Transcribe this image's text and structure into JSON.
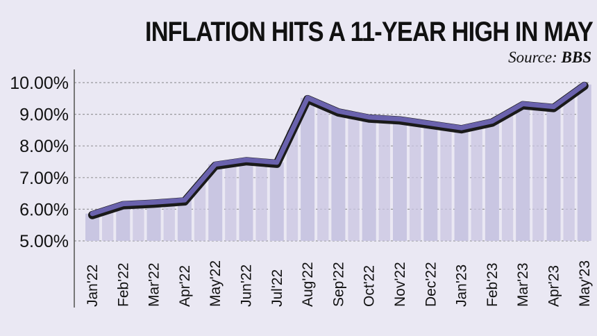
{
  "header": {
    "title": "INFLATION HITS A 11-YEAR HIGH IN MAY",
    "source_prefix": "Source: ",
    "source_name": "BBS"
  },
  "colors": {
    "background": "#eae8f3",
    "bar": "#c9c6e2",
    "line": "#6a62ad",
    "line_shadow": "#1a1a1a",
    "axis": "#777777"
  },
  "chart_data": {
    "type": "line",
    "title": "INFLATION HITS A 11-YEAR HIGH IN MAY",
    "categories": [
      "Jan'22",
      "Feb'22",
      "Mar'22",
      "Apr'22",
      "May'22",
      "Jun'22",
      "Jul'22",
      "Aug'22",
      "Sep'22",
      "Oct'22",
      "Nov'22",
      "Dec'22",
      "Jan'23",
      "Feb'23",
      "Mar'23",
      "Apr'23",
      "May'23"
    ],
    "values": [
      5.86,
      6.17,
      6.22,
      6.29,
      7.42,
      7.56,
      7.48,
      9.52,
      9.1,
      8.91,
      8.85,
      8.71,
      8.57,
      8.78,
      9.33,
      9.24,
      9.94
    ],
    "y_ticks": [
      "5.00%",
      "6.00%",
      "7.00%",
      "8.00%",
      "9.00%",
      "10.00%"
    ],
    "ylim": [
      5,
      10
    ],
    "xlabel": "",
    "ylabel": "",
    "grid": true,
    "legend": "none"
  }
}
